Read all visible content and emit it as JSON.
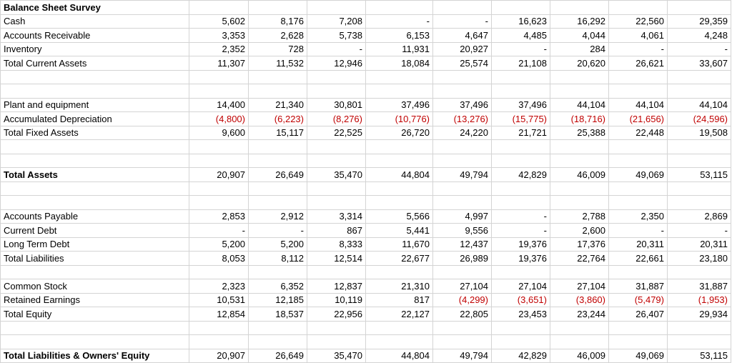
{
  "title": "Balance Sheet Survey",
  "rows": [
    {
      "label": "Cash",
      "values": [
        "5,602",
        "8,176",
        "7,208",
        "-",
        "-",
        "16,623",
        "16,292",
        "22,560",
        "29,359"
      ]
    },
    {
      "label": "Accounts Receivable",
      "values": [
        "3,353",
        "2,628",
        "5,738",
        "6,153",
        "4,647",
        "4,485",
        "4,044",
        "4,061",
        "4,248"
      ]
    },
    {
      "label": "Inventory",
      "values": [
        "2,352",
        "728",
        "-",
        "11,931",
        "20,927",
        "-",
        "284",
        "-",
        "-"
      ]
    },
    {
      "label": "Total Current Assets",
      "values": [
        "11,307",
        "11,532",
        "12,946",
        "18,084",
        "25,574",
        "21,108",
        "20,620",
        "26,621",
        "33,607"
      ]
    },
    {
      "label": "Plant and equipment",
      "values": [
        "14,400",
        "21,340",
        "30,801",
        "37,496",
        "37,496",
        "37,496",
        "44,104",
        "44,104",
        "44,104"
      ]
    },
    {
      "label": "Accumulated Depreciation",
      "values": [
        "(4,800)",
        "(6,223)",
        "(8,276)",
        "(10,776)",
        "(13,276)",
        "(15,775)",
        "(18,716)",
        "(21,656)",
        "(24,596)"
      ]
    },
    {
      "label": "Total Fixed Assets",
      "values": [
        "9,600",
        "15,117",
        "22,525",
        "26,720",
        "24,220",
        "21,721",
        "25,388",
        "22,448",
        "19,508"
      ]
    },
    {
      "label": "Total Assets",
      "values": [
        "20,907",
        "26,649",
        "35,470",
        "44,804",
        "49,794",
        "42,829",
        "46,009",
        "49,069",
        "53,115"
      ]
    },
    {
      "label": "Accounts Payable",
      "values": [
        "2,853",
        "2,912",
        "3,314",
        "5,566",
        "4,997",
        "-",
        "2,788",
        "2,350",
        "2,869"
      ]
    },
    {
      "label": "Current Debt",
      "values": [
        "-",
        "-",
        "867",
        "5,441",
        "9,556",
        "-",
        "2,600",
        "-",
        "-"
      ]
    },
    {
      "label": "Long Term Debt",
      "values": [
        "5,200",
        "5,200",
        "8,333",
        "11,670",
        "12,437",
        "19,376",
        "17,376",
        "20,311",
        "20,311"
      ]
    },
    {
      "label": "Total Liabilities",
      "values": [
        "8,053",
        "8,112",
        "12,514",
        "22,677",
        "26,989",
        "19,376",
        "22,764",
        "22,661",
        "23,180"
      ]
    },
    {
      "label": "Common Stock",
      "values": [
        "2,323",
        "6,352",
        "12,837",
        "21,310",
        "27,104",
        "27,104",
        "27,104",
        "31,887",
        "31,887"
      ]
    },
    {
      "label": "Retained Earnings",
      "values": [
        "10,531",
        "12,185",
        "10,119",
        "817",
        "(4,299)",
        "(3,651)",
        "(3,860)",
        "(5,479)",
        "(1,953)"
      ]
    },
    {
      "label": "Total Equity",
      "values": [
        "12,854",
        "18,537",
        "22,956",
        "22,127",
        "22,805",
        "23,453",
        "23,244",
        "26,407",
        "29,934"
      ]
    },
    {
      "label": "Total Liabilities & Owners' Equity",
      "values": [
        "20,907",
        "26,649",
        "35,470",
        "44,804",
        "49,794",
        "42,829",
        "46,009",
        "49,069",
        "53,115"
      ]
    }
  ],
  "colors": {
    "negative": "#c00000",
    "gridline": "#d4d4d4"
  }
}
